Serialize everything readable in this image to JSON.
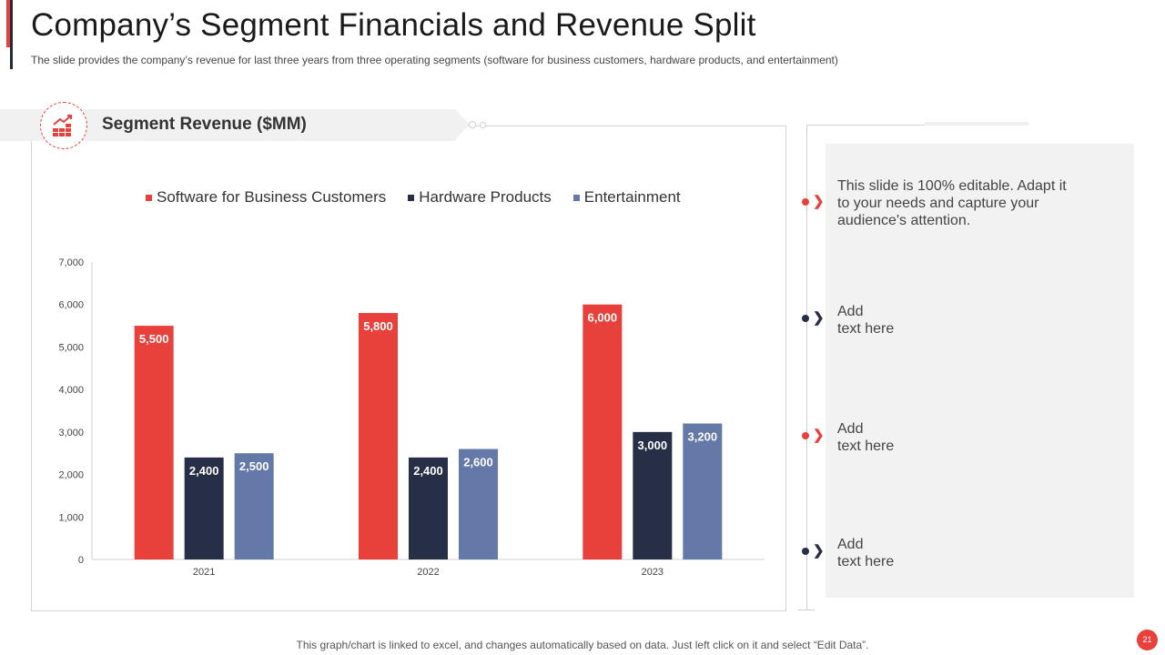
{
  "slide": {
    "title": "Company’s Segment Financials and Revenue Split",
    "subtitle": "The slide provides the company’s revenue for last three years from three operating segments (software for business customers, hardware products, and entertainment)",
    "footer": "This graph/chart is linked to excel,  and changes automatically based on data. Just left click on it and select “Edit Data”.",
    "page_number": "21"
  },
  "header": {
    "title": "Segment Revenue ($MM)",
    "icon": "growth-chart-icon"
  },
  "colors": {
    "accent_red": "#e8413c",
    "dark_navy": "#262f45",
    "slate_blue": "#6479a8"
  },
  "chart_data": {
    "type": "bar",
    "title": "",
    "xlabel": "",
    "ylabel": "",
    "categories": [
      "2021",
      "2022",
      "2023"
    ],
    "series": [
      {
        "name": "Software for Business Customers",
        "values": [
          5500,
          5800,
          6000
        ],
        "color": "#e8413c"
      },
      {
        "name": "Hardware Products",
        "values": [
          2400,
          2400,
          3000
        ],
        "color": "#262f45"
      },
      {
        "name": "Entertainment",
        "values": [
          2500,
          2600,
          3200
        ],
        "color": "#6479a8"
      }
    ],
    "ylim": [
      0,
      7000
    ],
    "yticks": [
      0,
      1000,
      2000,
      3000,
      4000,
      5000,
      6000,
      7000
    ],
    "ytick_labels": [
      "0",
      "1,000",
      "2,000",
      "3,000",
      "4,000",
      "5,000",
      "6,000",
      "7,000"
    ],
    "data_labels": [
      [
        "5,500",
        "5,800",
        "6,000"
      ],
      [
        "2,400",
        "2,400",
        "3,000"
      ],
      [
        "2,500",
        "2,600",
        "3,200"
      ]
    ],
    "legend_position": "top",
    "grid": false
  },
  "notes": [
    {
      "text": "This slide is 100% editable. Adapt it\nto your needs and capture your\naudience's attention.",
      "marker_color": "#e8413c"
    },
    {
      "text": "Add\ntext here",
      "marker_color": "#262f45"
    },
    {
      "text": "Add\ntext here",
      "marker_color": "#e8413c"
    },
    {
      "text": "Add\ntext here",
      "marker_color": "#262f45"
    }
  ]
}
